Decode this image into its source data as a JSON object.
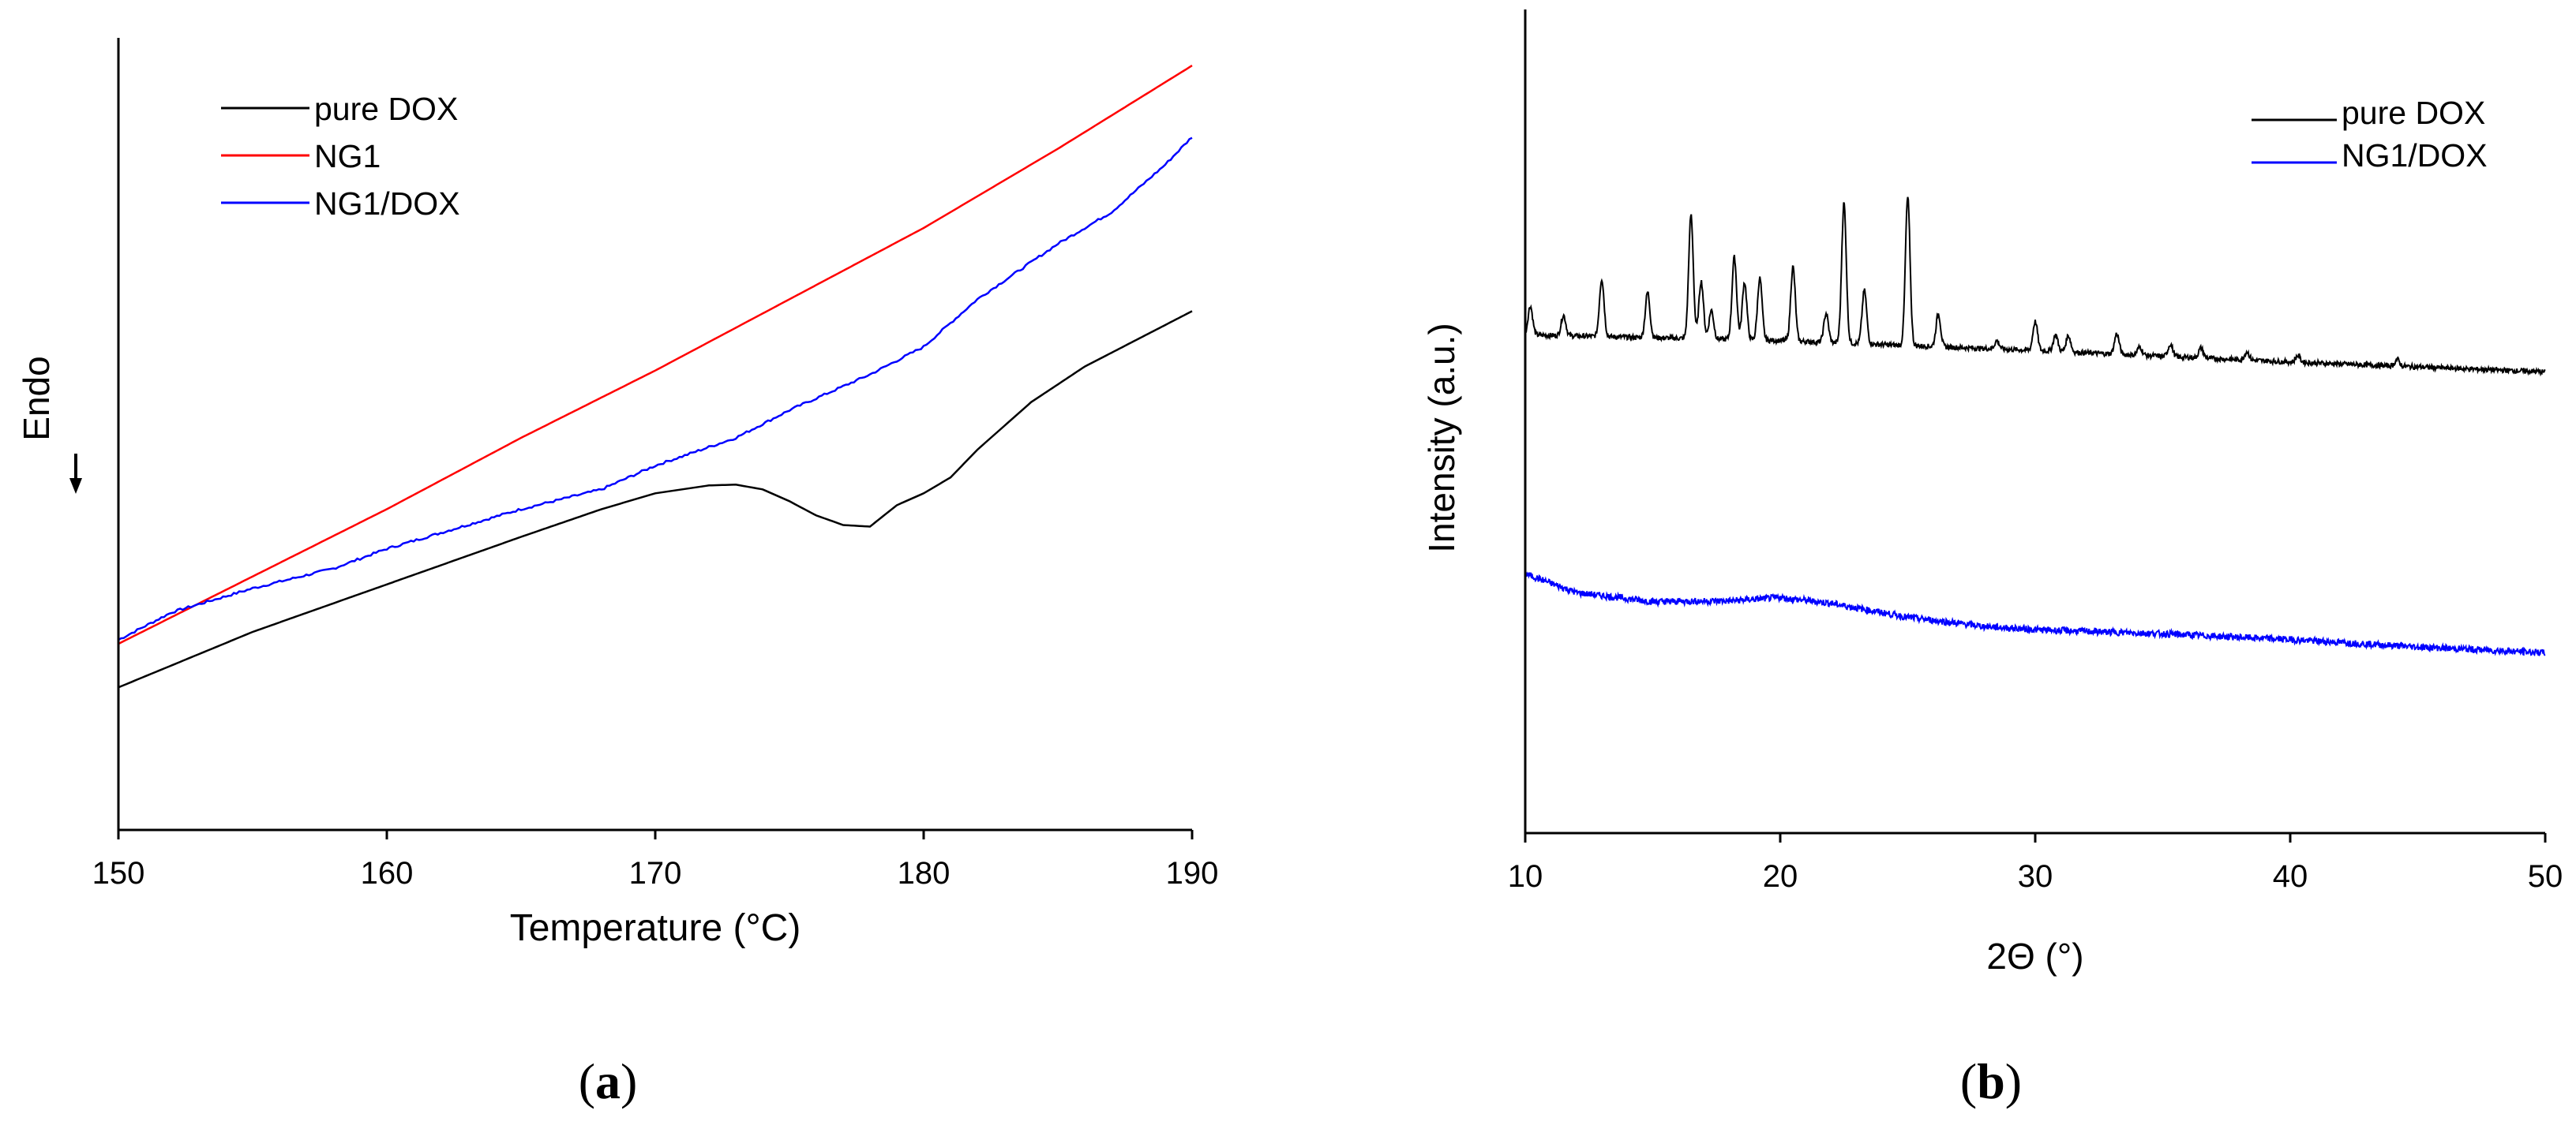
{
  "chart_data": [
    {
      "panel_label": "a",
      "type": "line",
      "title": "",
      "xlabel": "Temperature (°C)",
      "ylabel": "Endo",
      "xlim": [
        150,
        190
      ],
      "ylim": [
        0,
        100
      ],
      "xticks": [
        150,
        160,
        170,
        180,
        190
      ],
      "y_ticks_shown": false,
      "grid": false,
      "legend_position": "top-left",
      "colors": {
        "axis": "#000000",
        "pure_dox": "#000000",
        "ng1": "#ff0000",
        "ng1_dox": "#0000ff"
      },
      "series": [
        {
          "name": "pure DOX",
          "color": "#000000",
          "x": [
            150,
            155,
            160,
            165,
            168,
            170,
            172,
            173,
            174,
            175,
            176,
            177,
            178,
            179,
            180,
            181,
            182,
            184,
            186,
            188,
            190
          ],
          "y": [
            18,
            25,
            31,
            37,
            40.5,
            42.5,
            43.5,
            43.6,
            43,
            41.5,
            39.7,
            38.5,
            38.3,
            41,
            42.5,
            44.5,
            48,
            54,
            58.5,
            62,
            65.5
          ]
        },
        {
          "name": "NG1",
          "color": "#ff0000",
          "x": [
            150,
            155,
            160,
            165,
            170,
            175,
            180,
            185,
            190
          ],
          "y": [
            23.5,
            32,
            40.5,
            49.5,
            58,
            67,
            76,
            86,
            96.5
          ]
        },
        {
          "name": "NG1/DOX",
          "color": "#0000ff",
          "x": [
            150,
            152,
            155,
            158,
            160,
            163,
            165,
            168,
            170,
            173,
            175,
            178,
            180,
            182,
            185,
            187,
            188,
            189,
            190
          ],
          "y": [
            24,
            27.5,
            30.5,
            33,
            35.5,
            38.5,
            40.5,
            43,
            46,
            49.5,
            53,
            57.5,
            61,
            67,
            74,
            78,
            81,
            84,
            87.5
          ]
        }
      ]
    },
    {
      "panel_label": "b",
      "type": "line",
      "title": "",
      "xlabel": "2Θ (°)",
      "ylabel": "Intensity (a.u.)",
      "xlim": [
        10,
        50
      ],
      "ylim": [
        0,
        100
      ],
      "xticks": [
        10,
        20,
        30,
        40,
        50
      ],
      "y_ticks_shown": false,
      "grid": false,
      "legend_position": "top-right",
      "colors": {
        "axis": "#000000",
        "pure_dox": "#000000",
        "ng1_dox": "#0000ff"
      },
      "series": [
        {
          "name": "pure DOX",
          "color": "#000000",
          "baseline": {
            "x": [
              10,
              20,
              30,
              40,
              50
            ],
            "y": [
              60.5,
              59.8,
              58.6,
              57.2,
              56.0
            ]
          },
          "peaks": [
            {
              "x": 10.2,
              "h": 3.5
            },
            {
              "x": 11.5,
              "h": 2.5
            },
            {
              "x": 13.0,
              "h": 7.0
            },
            {
              "x": 14.8,
              "h": 5.5
            },
            {
              "x": 16.5,
              "h": 15.0
            },
            {
              "x": 16.9,
              "h": 7.0
            },
            {
              "x": 17.3,
              "h": 3.5
            },
            {
              "x": 18.2,
              "h": 10.0
            },
            {
              "x": 18.6,
              "h": 7.0
            },
            {
              "x": 19.2,
              "h": 7.5
            },
            {
              "x": 20.5,
              "h": 9.0
            },
            {
              "x": 21.8,
              "h": 3.5
            },
            {
              "x": 22.5,
              "h": 17.0
            },
            {
              "x": 23.3,
              "h": 6.5
            },
            {
              "x": 25.0,
              "h": 18.0
            },
            {
              "x": 26.2,
              "h": 4.0
            },
            {
              "x": 28.5,
              "h": 1.0
            },
            {
              "x": 30.0,
              "h": 3.5
            },
            {
              "x": 30.8,
              "h": 2.0
            },
            {
              "x": 31.3,
              "h": 2.0
            },
            {
              "x": 33.2,
              "h": 2.5
            },
            {
              "x": 34.1,
              "h": 1.0
            },
            {
              "x": 35.3,
              "h": 1.5
            },
            {
              "x": 36.5,
              "h": 1.2
            },
            {
              "x": 38.3,
              "h": 1.0
            },
            {
              "x": 40.3,
              "h": 0.8
            },
            {
              "x": 44.2,
              "h": 0.8
            }
          ]
        },
        {
          "name": "NG1/DOX",
          "color": "#0000ff",
          "x": [
            10,
            12,
            15,
            18,
            20,
            22,
            25,
            28,
            30,
            35,
            40,
            45,
            50
          ],
          "y": [
            31.5,
            29.2,
            28.1,
            28.2,
            28.6,
            27.9,
            26.2,
            25.1,
            24.7,
            24.2,
            23.5,
            22.6,
            21.9
          ]
        }
      ]
    }
  ]
}
